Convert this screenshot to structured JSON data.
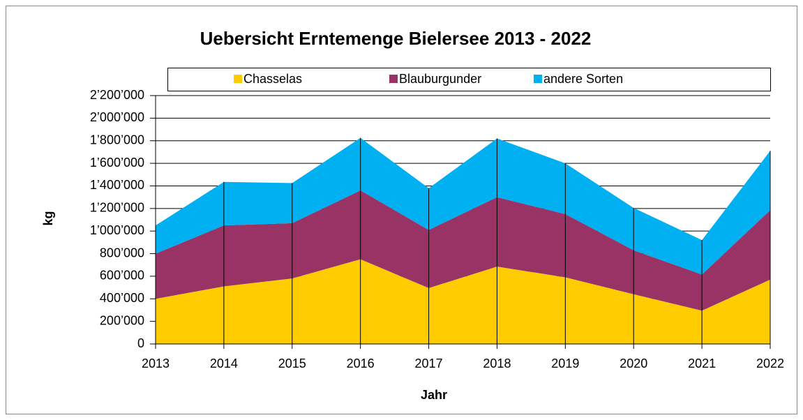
{
  "chart_data": {
    "type": "area",
    "title": "Uebersicht Erntemenge Bielersee 2013 - 2022",
    "x_label": "Jahr",
    "y_label": "kg",
    "categories": [
      "2013",
      "2014",
      "2015",
      "2016",
      "2017",
      "2018",
      "2019",
      "2020",
      "2021",
      "2022"
    ],
    "series": [
      {
        "name": "Chasselas",
        "color": "#FFCC00",
        "values": [
          400000,
          510000,
          580000,
          750000,
          495000,
          685000,
          590000,
          440000,
          295000,
          570000
        ]
      },
      {
        "name": "Blauburgunder",
        "color": "#993366",
        "values": [
          400000,
          540000,
          490000,
          610000,
          515000,
          615000,
          560000,
          390000,
          320000,
          615000
        ]
      },
      {
        "name": "andere Sorten",
        "color": "#00B0F0",
        "values": [
          250000,
          385000,
          355000,
          465000,
          370000,
          520000,
          450000,
          375000,
          305000,
          525000
        ]
      }
    ],
    "stacked": true,
    "ylim": [
      0,
      2200000
    ],
    "yticks": [
      0,
      {
        "value": 200000,
        "label": "200’000"
      },
      {
        "value": 400000,
        "label": "400’000"
      },
      {
        "value": 600000,
        "label": "600’000"
      },
      {
        "value": 800000,
        "label": "800’000"
      },
      {
        "value": 1000000,
        "label": "1’000’000"
      },
      {
        "value": 1200000,
        "label": "1’200’000"
      },
      {
        "value": 1400000,
        "label": "1’400’000"
      },
      {
        "value": 1600000,
        "label": "1’600’000"
      },
      {
        "value": 1800000,
        "label": "1’800’000"
      },
      {
        "value": 2000000,
        "label": "2’000’000"
      },
      {
        "value": 2200000,
        "label": "2’200’000"
      }
    ],
    "grid": true,
    "legend": "top"
  }
}
